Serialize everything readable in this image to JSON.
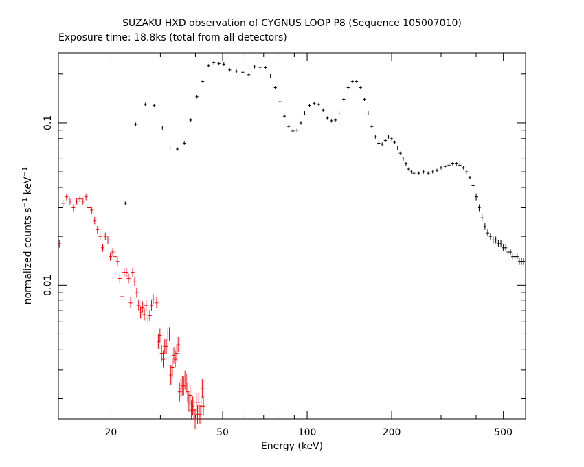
{
  "chart_data": {
    "type": "scatter",
    "title": "SUZAKU HXD observation of CYGNUS LOOP P8 (Sequence 105007010)",
    "subtitle": "Exposure time: 18.8ks (total from all detectors)",
    "xlabel": "Energy (keV)",
    "ylabel_main": "normalized counts s",
    "ylabel_sup1": "−1",
    "ylabel_mid": " keV",
    "ylabel_sup2": "−1",
    "x_scale": "log",
    "y_scale": "log",
    "xlim": [
      13,
      600
    ],
    "ylim": [
      0.0015,
      0.27
    ],
    "x_ticks": [
      20,
      50,
      100,
      200,
      500
    ],
    "x_tick_labels": [
      "20",
      "50",
      "100",
      "200",
      "500"
    ],
    "y_ticks": [
      0.01,
      0.1
    ],
    "y_tick_labels": [
      "0.01",
      "0.1"
    ],
    "grid": false,
    "series": [
      {
        "color": "#000000",
        "points": [
          [
            22.5,
            0.032
          ],
          [
            24.5,
            0.098
          ],
          [
            26.5,
            0.13
          ],
          [
            28.5,
            0.128
          ],
          [
            30.5,
            0.093
          ],
          [
            32.5,
            0.07
          ],
          [
            34.5,
            0.069
          ],
          [
            36.5,
            0.075
          ],
          [
            38.5,
            0.104
          ],
          [
            40.5,
            0.145
          ],
          [
            42.5,
            0.18
          ],
          [
            44.5,
            0.225
          ],
          [
            46.5,
            0.235
          ],
          [
            48.5,
            0.232
          ],
          [
            50.5,
            0.23
          ],
          [
            53,
            0.212
          ],
          [
            56,
            0.208
          ],
          [
            59,
            0.205
          ],
          [
            62,
            0.198
          ],
          [
            65,
            0.222
          ],
          [
            68,
            0.22
          ],
          [
            71,
            0.219
          ],
          [
            74,
            0.195
          ],
          [
            77,
            0.165
          ],
          [
            80,
            0.135
          ],
          [
            83,
            0.11
          ],
          [
            86,
            0.095
          ],
          [
            89,
            0.089
          ],
          [
            92,
            0.09
          ],
          [
            95,
            0.1
          ],
          [
            98,
            0.115
          ],
          [
            102,
            0.128
          ],
          [
            106,
            0.132
          ],
          [
            110,
            0.13
          ],
          [
            114,
            0.12
          ],
          [
            118,
            0.107
          ],
          [
            122,
            0.103
          ],
          [
            126,
            0.104
          ],
          [
            130,
            0.115
          ],
          [
            135,
            0.14
          ],
          [
            140,
            0.165
          ],
          [
            145,
            0.18
          ],
          [
            150,
            0.18
          ],
          [
            155,
            0.165
          ],
          [
            160,
            0.14
          ],
          [
            165,
            0.115
          ],
          [
            170,
            0.095
          ],
          [
            175,
            0.082
          ],
          [
            180,
            0.075
          ],
          [
            185,
            0.074
          ],
          [
            190,
            0.078
          ],
          [
            195,
            0.082
          ],
          [
            200,
            0.08
          ],
          [
            205,
            0.076
          ],
          [
            210,
            0.07
          ],
          [
            215,
            0.065
          ],
          [
            220,
            0.06
          ],
          [
            225,
            0.056
          ],
          [
            230,
            0.052
          ],
          [
            235,
            0.05
          ],
          [
            240,
            0.049
          ],
          [
            250,
            0.049
          ],
          [
            260,
            0.05
          ],
          [
            270,
            0.049
          ],
          [
            280,
            0.05
          ],
          [
            290,
            0.051
          ],
          [
            300,
            0.053
          ],
          [
            310,
            0.054
          ],
          [
            320,
            0.055
          ],
          [
            330,
            0.056
          ],
          [
            340,
            0.056
          ],
          [
            350,
            0.055
          ],
          [
            360,
            0.053
          ],
          [
            370,
            0.05
          ],
          [
            380,
            0.046
          ],
          [
            390,
            0.041
          ],
          [
            400,
            0.035
          ],
          [
            410,
            0.03
          ],
          [
            420,
            0.026
          ],
          [
            430,
            0.023
          ],
          [
            440,
            0.021
          ],
          [
            450,
            0.02
          ],
          [
            460,
            0.019
          ],
          [
            470,
            0.019
          ],
          [
            480,
            0.018
          ],
          [
            490,
            0.018
          ],
          [
            500,
            0.017
          ],
          [
            510,
            0.017
          ],
          [
            520,
            0.016
          ],
          [
            530,
            0.016
          ],
          [
            540,
            0.015
          ],
          [
            550,
            0.015
          ],
          [
            560,
            0.015
          ],
          [
            570,
            0.014
          ],
          [
            580,
            0.014
          ],
          [
            590,
            0.014
          ]
        ]
      },
      {
        "color": "#ff0000",
        "points": [
          [
            13.1,
            0.018
          ],
          [
            13.5,
            0.032
          ],
          [
            13.9,
            0.035
          ],
          [
            14.3,
            0.033
          ],
          [
            14.7,
            0.03
          ],
          [
            15.1,
            0.033
          ],
          [
            15.5,
            0.034
          ],
          [
            15.9,
            0.033
          ],
          [
            16.3,
            0.035
          ],
          [
            16.7,
            0.03
          ],
          [
            17.1,
            0.029
          ],
          [
            17.5,
            0.025
          ],
          [
            17.9,
            0.022
          ],
          [
            18.3,
            0.02
          ],
          [
            18.7,
            0.017
          ],
          [
            19.1,
            0.02
          ],
          [
            19.5,
            0.019
          ],
          [
            19.9,
            0.015
          ],
          [
            20.3,
            0.016
          ],
          [
            20.7,
            0.015
          ],
          [
            21.1,
            0.014
          ],
          [
            21.5,
            0.011
          ],
          [
            21.9,
            0.0085
          ],
          [
            22.3,
            0.012
          ],
          [
            22.7,
            0.012
          ],
          [
            23.1,
            0.011
          ],
          [
            23.5,
            0.0078
          ],
          [
            23.9,
            0.012
          ],
          [
            24.3,
            0.0105
          ],
          [
            24.7,
            0.009
          ],
          [
            25.1,
            0.0075
          ],
          [
            25.5,
            0.0068
          ],
          [
            25.9,
            0.0073
          ],
          [
            26.3,
            0.0066
          ],
          [
            26.7,
            0.0075
          ],
          [
            27.1,
            0.0062
          ],
          [
            27.5,
            0.0065
          ],
          [
            27.9,
            0.0075
          ],
          [
            28.3,
            0.0082
          ],
          [
            28.7,
            0.0053
          ],
          [
            29.1,
            0.0078
          ],
          [
            29.5,
            0.0045
          ],
          [
            29.9,
            0.0049
          ],
          [
            30.3,
            0.0038
          ],
          [
            30.7,
            0.0035
          ],
          [
            31.1,
            0.0042
          ],
          [
            31.5,
            0.0042
          ],
          [
            31.9,
            0.005
          ],
          [
            32.3,
            0.005
          ],
          [
            32.7,
            0.0028
          ],
          [
            33.1,
            0.0031
          ],
          [
            33.5,
            0.0037
          ],
          [
            33.9,
            0.0035
          ],
          [
            34.3,
            0.0038
          ],
          [
            34.7,
            0.0043
          ],
          [
            35.1,
            0.0022
          ],
          [
            35.5,
            0.0023
          ],
          [
            35.9,
            0.0024
          ],
          [
            36.3,
            0.0024
          ],
          [
            36.7,
            0.0026
          ],
          [
            37.1,
            0.0025
          ],
          [
            37.5,
            0.0022
          ],
          [
            37.9,
            0.0019
          ],
          [
            38.3,
            0.0021
          ],
          [
            38.7,
            0.0017
          ],
          [
            39.1,
            0.0018
          ],
          [
            39.5,
            0.0017
          ],
          [
            39.9,
            0.0015
          ],
          [
            40.3,
            0.0019
          ],
          [
            40.7,
            0.0016
          ],
          [
            41.1,
            0.0019
          ],
          [
            41.5,
            0.0016
          ],
          [
            41.9,
            0.0018
          ],
          [
            42.3,
            0.0023
          ],
          [
            42.7,
            0.0018
          ]
        ]
      }
    ]
  }
}
